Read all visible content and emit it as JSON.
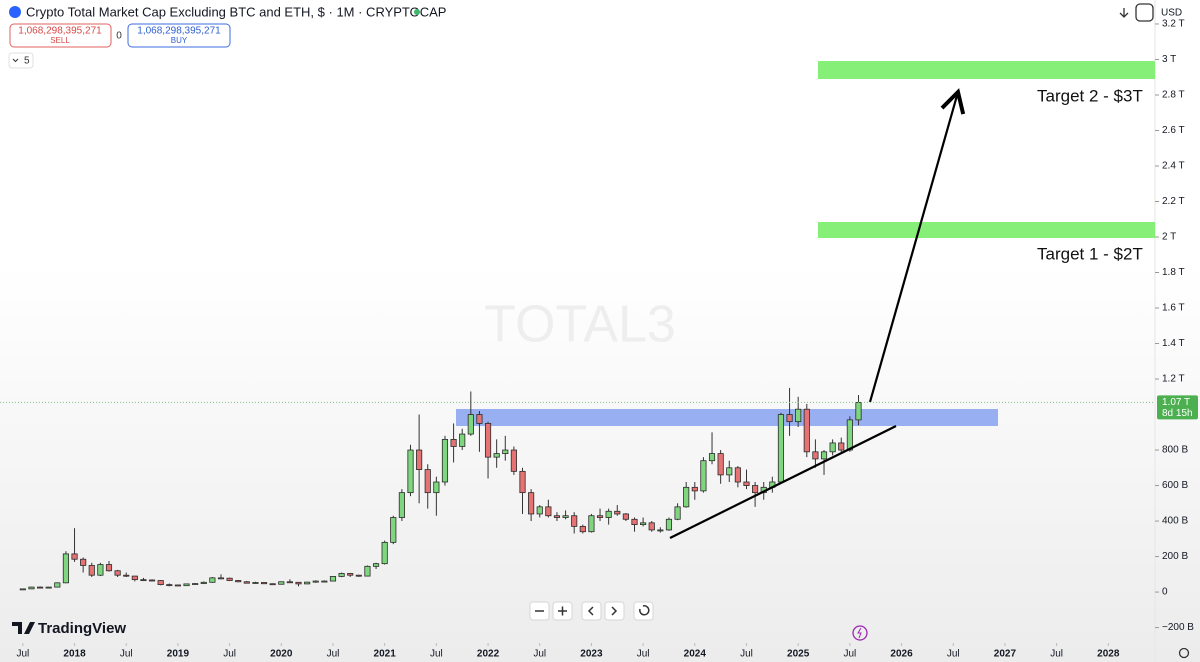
{
  "header": {
    "title": "Crypto Total Market Cap Excluding BTC and ETH, $ · 1M · CRYPTOCAP",
    "sell_price": "1,068,298,395,271",
    "sell_label": "SELL",
    "spread": "0",
    "buy_price": "1,068,298,395,271",
    "buy_label": "BUY",
    "currency": "USD",
    "indicator_count": "5"
  },
  "footer": {
    "brand": "TradingView"
  },
  "chart_data": {
    "type": "candlestick",
    "watermark": "TOTAL3",
    "up_color": "#7fd67f",
    "down_color": "#e57373",
    "x": [
      "2017-07",
      "2017-08",
      "2017-09",
      "2017-10",
      "2017-11",
      "2017-12",
      "2018-01",
      "2018-02",
      "2018-03",
      "2018-04",
      "2018-05",
      "2018-06",
      "2018-07",
      "2018-08",
      "2018-09",
      "2018-10",
      "2018-11",
      "2018-12",
      "2019-01",
      "2019-02",
      "2019-03",
      "2019-04",
      "2019-05",
      "2019-06",
      "2019-07",
      "2019-08",
      "2019-09",
      "2019-10",
      "2019-11",
      "2019-12",
      "2020-01",
      "2020-02",
      "2020-03",
      "2020-04",
      "2020-05",
      "2020-06",
      "2020-07",
      "2020-08",
      "2020-09",
      "2020-10",
      "2020-11",
      "2020-12",
      "2021-01",
      "2021-02",
      "2021-03",
      "2021-04",
      "2021-05",
      "2021-06",
      "2021-07",
      "2021-08",
      "2021-09",
      "2021-10",
      "2021-11",
      "2021-12",
      "2022-01",
      "2022-02",
      "2022-03",
      "2022-04",
      "2022-05",
      "2022-06",
      "2022-07",
      "2022-08",
      "2022-09",
      "2022-10",
      "2022-11",
      "2022-12",
      "2023-01",
      "2023-02",
      "2023-03",
      "2023-04",
      "2023-05",
      "2023-06",
      "2023-07",
      "2023-08",
      "2023-09",
      "2023-10",
      "2023-11",
      "2023-12",
      "2024-01",
      "2024-02",
      "2024-03",
      "2024-04",
      "2024-05",
      "2024-06",
      "2024-07",
      "2024-08",
      "2024-09",
      "2024-10",
      "2024-11",
      "2024-12",
      "2025-01",
      "2025-02",
      "2025-03",
      "2025-04",
      "2025-05",
      "2025-06",
      "2025-07",
      "2025-08"
    ],
    "open": [
      15,
      18,
      28,
      26,
      28,
      52,
      215,
      185,
      150,
      95,
      155,
      120,
      95,
      90,
      70,
      68,
      65,
      42,
      40,
      36,
      46,
      48,
      55,
      80,
      78,
      65,
      58,
      50,
      54,
      47,
      44,
      58,
      55,
      46,
      56,
      62,
      62,
      88,
      105,
      95,
      90,
      145,
      160,
      280,
      420,
      560,
      800,
      690,
      560,
      620,
      860,
      820,
      890,
      1000,
      950,
      760,
      780,
      800,
      680,
      560,
      440,
      480,
      430,
      420,
      430,
      370,
      340,
      430,
      420,
      455,
      440,
      410,
      380,
      390,
      350,
      350,
      410,
      480,
      590,
      570,
      740,
      780,
      660,
      700,
      620,
      600,
      560,
      590,
      620,
      1000,
      960,
      1030,
      790,
      750,
      790,
      840,
      800,
      970
    ],
    "high": [
      20,
      30,
      32,
      30,
      55,
      230,
      360,
      195,
      165,
      165,
      175,
      125,
      110,
      92,
      80,
      72,
      68,
      48,
      42,
      48,
      50,
      60,
      85,
      100,
      82,
      68,
      62,
      58,
      56,
      49,
      60,
      72,
      57,
      58,
      66,
      66,
      90,
      110,
      108,
      98,
      150,
      165,
      290,
      430,
      580,
      830,
      1000,
      720,
      650,
      880,
      950,
      920,
      1130,
      1020,
      960,
      860,
      880,
      820,
      700,
      580,
      490,
      520,
      450,
      460,
      450,
      380,
      440,
      470,
      470,
      490,
      445,
      420,
      420,
      400,
      365,
      420,
      500,
      620,
      620,
      760,
      900,
      800,
      740,
      710,
      690,
      620,
      620,
      650,
      1010,
      1150,
      1100,
      1060,
      860,
      800,
      860,
      870,
      990,
      1110
    ],
    "low": [
      12,
      17,
      20,
      23,
      26,
      50,
      170,
      110,
      85,
      90,
      115,
      85,
      85,
      60,
      62,
      60,
      38,
      32,
      34,
      35,
      44,
      45,
      52,
      72,
      62,
      55,
      48,
      47,
      45,
      40,
      43,
      52,
      32,
      44,
      52,
      58,
      60,
      84,
      85,
      86,
      88,
      130,
      155,
      270,
      400,
      540,
      500,
      470,
      430,
      600,
      730,
      800,
      880,
      790,
      640,
      700,
      740,
      660,
      440,
      400,
      420,
      420,
      400,
      410,
      330,
      330,
      335,
      400,
      380,
      430,
      400,
      340,
      370,
      340,
      335,
      345,
      405,
      475,
      520,
      560,
      720,
      610,
      620,
      590,
      580,
      480,
      520,
      560,
      610,
      880,
      930,
      760,
      700,
      660,
      770,
      780,
      790,
      940
    ],
    "close": [
      18,
      28,
      26,
      28,
      52,
      215,
      185,
      150,
      95,
      155,
      120,
      95,
      90,
      70,
      68,
      65,
      42,
      40,
      36,
      46,
      48,
      55,
      80,
      78,
      65,
      58,
      50,
      54,
      47,
      44,
      58,
      55,
      46,
      56,
      62,
      62,
      88,
      105,
      95,
      90,
      145,
      160,
      280,
      420,
      560,
      800,
      690,
      560,
      620,
      860,
      820,
      890,
      1000,
      950,
      760,
      780,
      800,
      680,
      560,
      440,
      480,
      430,
      420,
      430,
      370,
      340,
      430,
      420,
      455,
      440,
      410,
      380,
      390,
      350,
      350,
      410,
      480,
      590,
      570,
      740,
      780,
      660,
      700,
      620,
      600,
      560,
      590,
      620,
      1000,
      960,
      1030,
      790,
      750,
      790,
      840,
      800,
      970,
      1068.3
    ],
    "xlim": [
      "2017-04",
      "2028-07"
    ],
    "xticks": [
      {
        "value": "2017-07",
        "label": "Jul"
      },
      {
        "value": "2018-01",
        "label": "2018"
      },
      {
        "value": "2018-07",
        "label": "Jul"
      },
      {
        "value": "2019-01",
        "label": "2019"
      },
      {
        "value": "2019-07",
        "label": "Jul"
      },
      {
        "value": "2020-01",
        "label": "2020"
      },
      {
        "value": "2020-07",
        "label": "Jul"
      },
      {
        "value": "2021-01",
        "label": "2021"
      },
      {
        "value": "2021-07",
        "label": "Jul"
      },
      {
        "value": "2022-01",
        "label": "2022"
      },
      {
        "value": "2022-07",
        "label": "Jul"
      },
      {
        "value": "2023-01",
        "label": "2023"
      },
      {
        "value": "2023-07",
        "label": "Jul"
      },
      {
        "value": "2024-01",
        "label": "2024"
      },
      {
        "value": "2024-07",
        "label": "Jul"
      },
      {
        "value": "2025-01",
        "label": "2025"
      },
      {
        "value": "2025-07",
        "label": "Jul"
      },
      {
        "value": "2026-01",
        "label": "2026"
      },
      {
        "value": "2026-07",
        "label": "Jul"
      },
      {
        "value": "2027-01",
        "label": "2027"
      },
      {
        "value": "2027-07",
        "label": "Jul"
      },
      {
        "value": "2028-01",
        "label": "2028"
      }
    ],
    "ylim": [
      -270,
      3335
    ],
    "yticks": [
      {
        "value": -200,
        "label": "−200 B"
      },
      0,
      {
        "value": 200,
        "label": "200 B"
      },
      {
        "value": 400,
        "label": "400 B"
      },
      {
        "value": 600,
        "label": "600 B"
      },
      {
        "value": 800,
        "label": "800 B"
      },
      {
        "value": 1200,
        "label": "1.2 T"
      },
      {
        "value": 1400,
        "label": "1.4 T"
      },
      {
        "value": 1600,
        "label": "1.6 T"
      },
      {
        "value": 1800,
        "label": "1.8 T"
      },
      {
        "value": 2000,
        "label": "2 T"
      },
      {
        "value": 2200,
        "label": "2.2 T"
      },
      {
        "value": 2400,
        "label": "2.4 T"
      },
      {
        "value": 2600,
        "label": "2.6 T"
      },
      {
        "value": 2800,
        "label": "2.8 T"
      },
      {
        "value": 3000,
        "label": "3 T"
      },
      {
        "value": 3200,
        "label": "3.2 T"
      }
    ],
    "last_price": {
      "value": 1068.3,
      "label": "1.07 T"
    },
    "countdown": "8d 15h",
    "annotations": [
      "Target 2 - $3T",
      "Target 1 - $2T"
    ]
  }
}
